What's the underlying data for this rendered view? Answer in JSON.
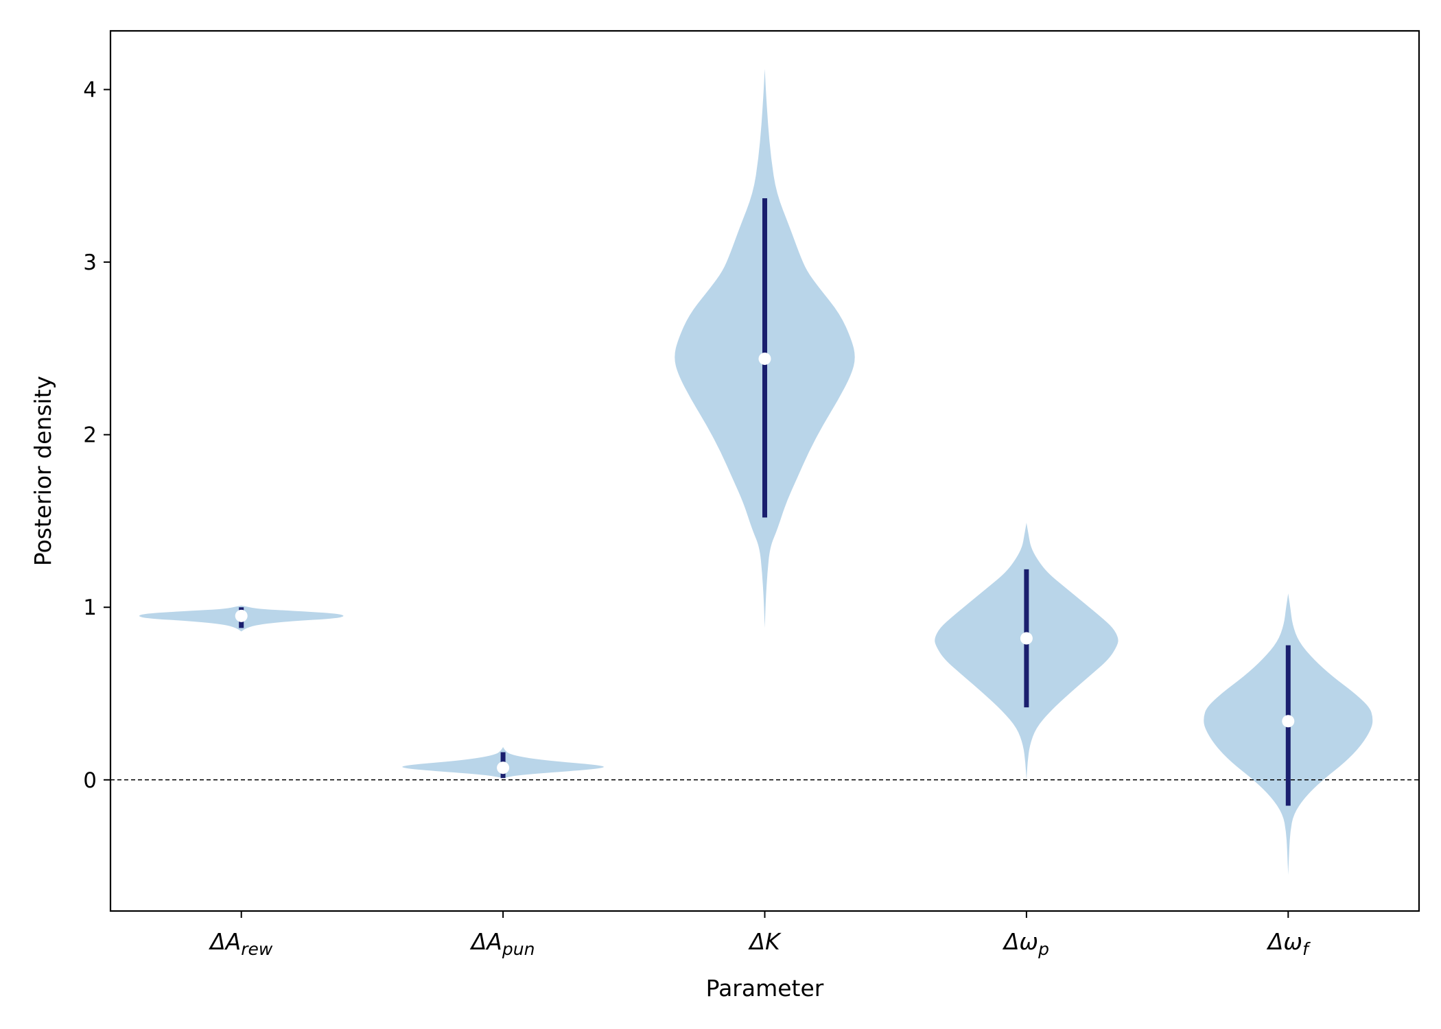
{
  "chart_data": {
    "type": "violin",
    "title": "",
    "xlabel": "Parameter",
    "ylabel": "Posterior density",
    "ylim": [
      -0.76,
      4.34
    ],
    "yticks": [
      0,
      1,
      2,
      3,
      4
    ],
    "grid": false,
    "reference_line": {
      "y": 0,
      "style": "dashed"
    },
    "colors": {
      "violin": "#b9d5e9",
      "interval": "#1a1f6e",
      "median": "#ffffff",
      "refline": "#000000"
    },
    "categories": [
      {
        "base": "ΔA",
        "sub": "rew"
      },
      {
        "base": "ΔA",
        "sub": "pun"
      },
      {
        "base": "ΔK",
        "sub": ""
      },
      {
        "base": "Δω",
        "sub": "p"
      },
      {
        "base": "Δω",
        "sub": "f"
      }
    ],
    "series": [
      {
        "median": 0.95,
        "interval": [
          0.88,
          1.0
        ],
        "range": [
          0.86,
          1.01
        ],
        "profile": [
          [
            0.86,
            0.0
          ],
          [
            0.88,
            0.05
          ],
          [
            0.9,
            0.16
          ],
          [
            0.92,
            0.48
          ],
          [
            0.935,
            0.9
          ],
          [
            0.95,
            1.0
          ],
          [
            0.965,
            0.9
          ],
          [
            0.98,
            0.48
          ],
          [
            0.99,
            0.16
          ],
          [
            1.01,
            0.0
          ]
        ],
        "width_rel": 0.8
      },
      {
        "median": 0.07,
        "interval": [
          0.01,
          0.16
        ],
        "range": [
          0.01,
          0.19
        ],
        "profile": [
          [
            0.01,
            0.0
          ],
          [
            0.025,
            0.12
          ],
          [
            0.04,
            0.4
          ],
          [
            0.06,
            0.85
          ],
          [
            0.075,
            1.0
          ],
          [
            0.09,
            0.85
          ],
          [
            0.11,
            0.45
          ],
          [
            0.13,
            0.2
          ],
          [
            0.15,
            0.06
          ],
          [
            0.17,
            0.02
          ],
          [
            0.19,
            0.0
          ]
        ],
        "width_rel": 0.8
      },
      {
        "median": 2.44,
        "interval": [
          1.52,
          3.37
        ],
        "range": [
          0.88,
          4.12
        ],
        "profile": [
          [
            0.88,
            0.0
          ],
          [
            1.05,
            0.01
          ],
          [
            1.2,
            0.025
          ],
          [
            1.35,
            0.05
          ],
          [
            1.45,
            0.12
          ],
          [
            1.6,
            0.2
          ],
          [
            1.75,
            0.31
          ],
          [
            1.9,
            0.42
          ],
          [
            2.05,
            0.55
          ],
          [
            2.2,
            0.7
          ],
          [
            2.35,
            0.83
          ],
          [
            2.45,
            0.87
          ],
          [
            2.55,
            0.83
          ],
          [
            2.7,
            0.72
          ],
          [
            2.85,
            0.52
          ],
          [
            2.95,
            0.4
          ],
          [
            3.05,
            0.33
          ],
          [
            3.2,
            0.24
          ],
          [
            3.4,
            0.11
          ],
          [
            3.6,
            0.06
          ],
          [
            3.8,
            0.03
          ],
          [
            4.0,
            0.01
          ],
          [
            4.12,
            0.0
          ]
        ],
        "width_rel": 0.8
      },
      {
        "median": 0.82,
        "interval": [
          0.42,
          1.22
        ],
        "range": [
          0.0,
          1.49
        ],
        "profile": [
          [
            0.0,
            0.0
          ],
          [
            0.1,
            0.01
          ],
          [
            0.2,
            0.03
          ],
          [
            0.3,
            0.09
          ],
          [
            0.4,
            0.23
          ],
          [
            0.5,
            0.41
          ],
          [
            0.6,
            0.6
          ],
          [
            0.7,
            0.79
          ],
          [
            0.78,
            0.87
          ],
          [
            0.82,
            0.88
          ],
          [
            0.88,
            0.83
          ],
          [
            0.95,
            0.7
          ],
          [
            1.05,
            0.5
          ],
          [
            1.12,
            0.36
          ],
          [
            1.2,
            0.2
          ],
          [
            1.28,
            0.1
          ],
          [
            1.35,
            0.04
          ],
          [
            1.42,
            0.02
          ],
          [
            1.49,
            0.0
          ]
        ],
        "width_rel": 0.8
      },
      {
        "median": 0.34,
        "interval": [
          -0.15,
          0.78
        ],
        "range": [
          -0.55,
          1.08
        ],
        "profile": [
          [
            -0.55,
            0.0
          ],
          [
            -0.4,
            0.01
          ],
          [
            -0.3,
            0.02
          ],
          [
            -0.2,
            0.05
          ],
          [
            -0.1,
            0.16
          ],
          [
            0.0,
            0.33
          ],
          [
            0.1,
            0.54
          ],
          [
            0.2,
            0.7
          ],
          [
            0.3,
            0.8
          ],
          [
            0.36,
            0.81
          ],
          [
            0.42,
            0.78
          ],
          [
            0.5,
            0.64
          ],
          [
            0.6,
            0.42
          ],
          [
            0.7,
            0.24
          ],
          [
            0.8,
            0.1
          ],
          [
            0.9,
            0.04
          ],
          [
            1.0,
            0.02
          ],
          [
            1.08,
            0.0
          ]
        ],
        "width_rel": 0.8
      }
    ]
  }
}
